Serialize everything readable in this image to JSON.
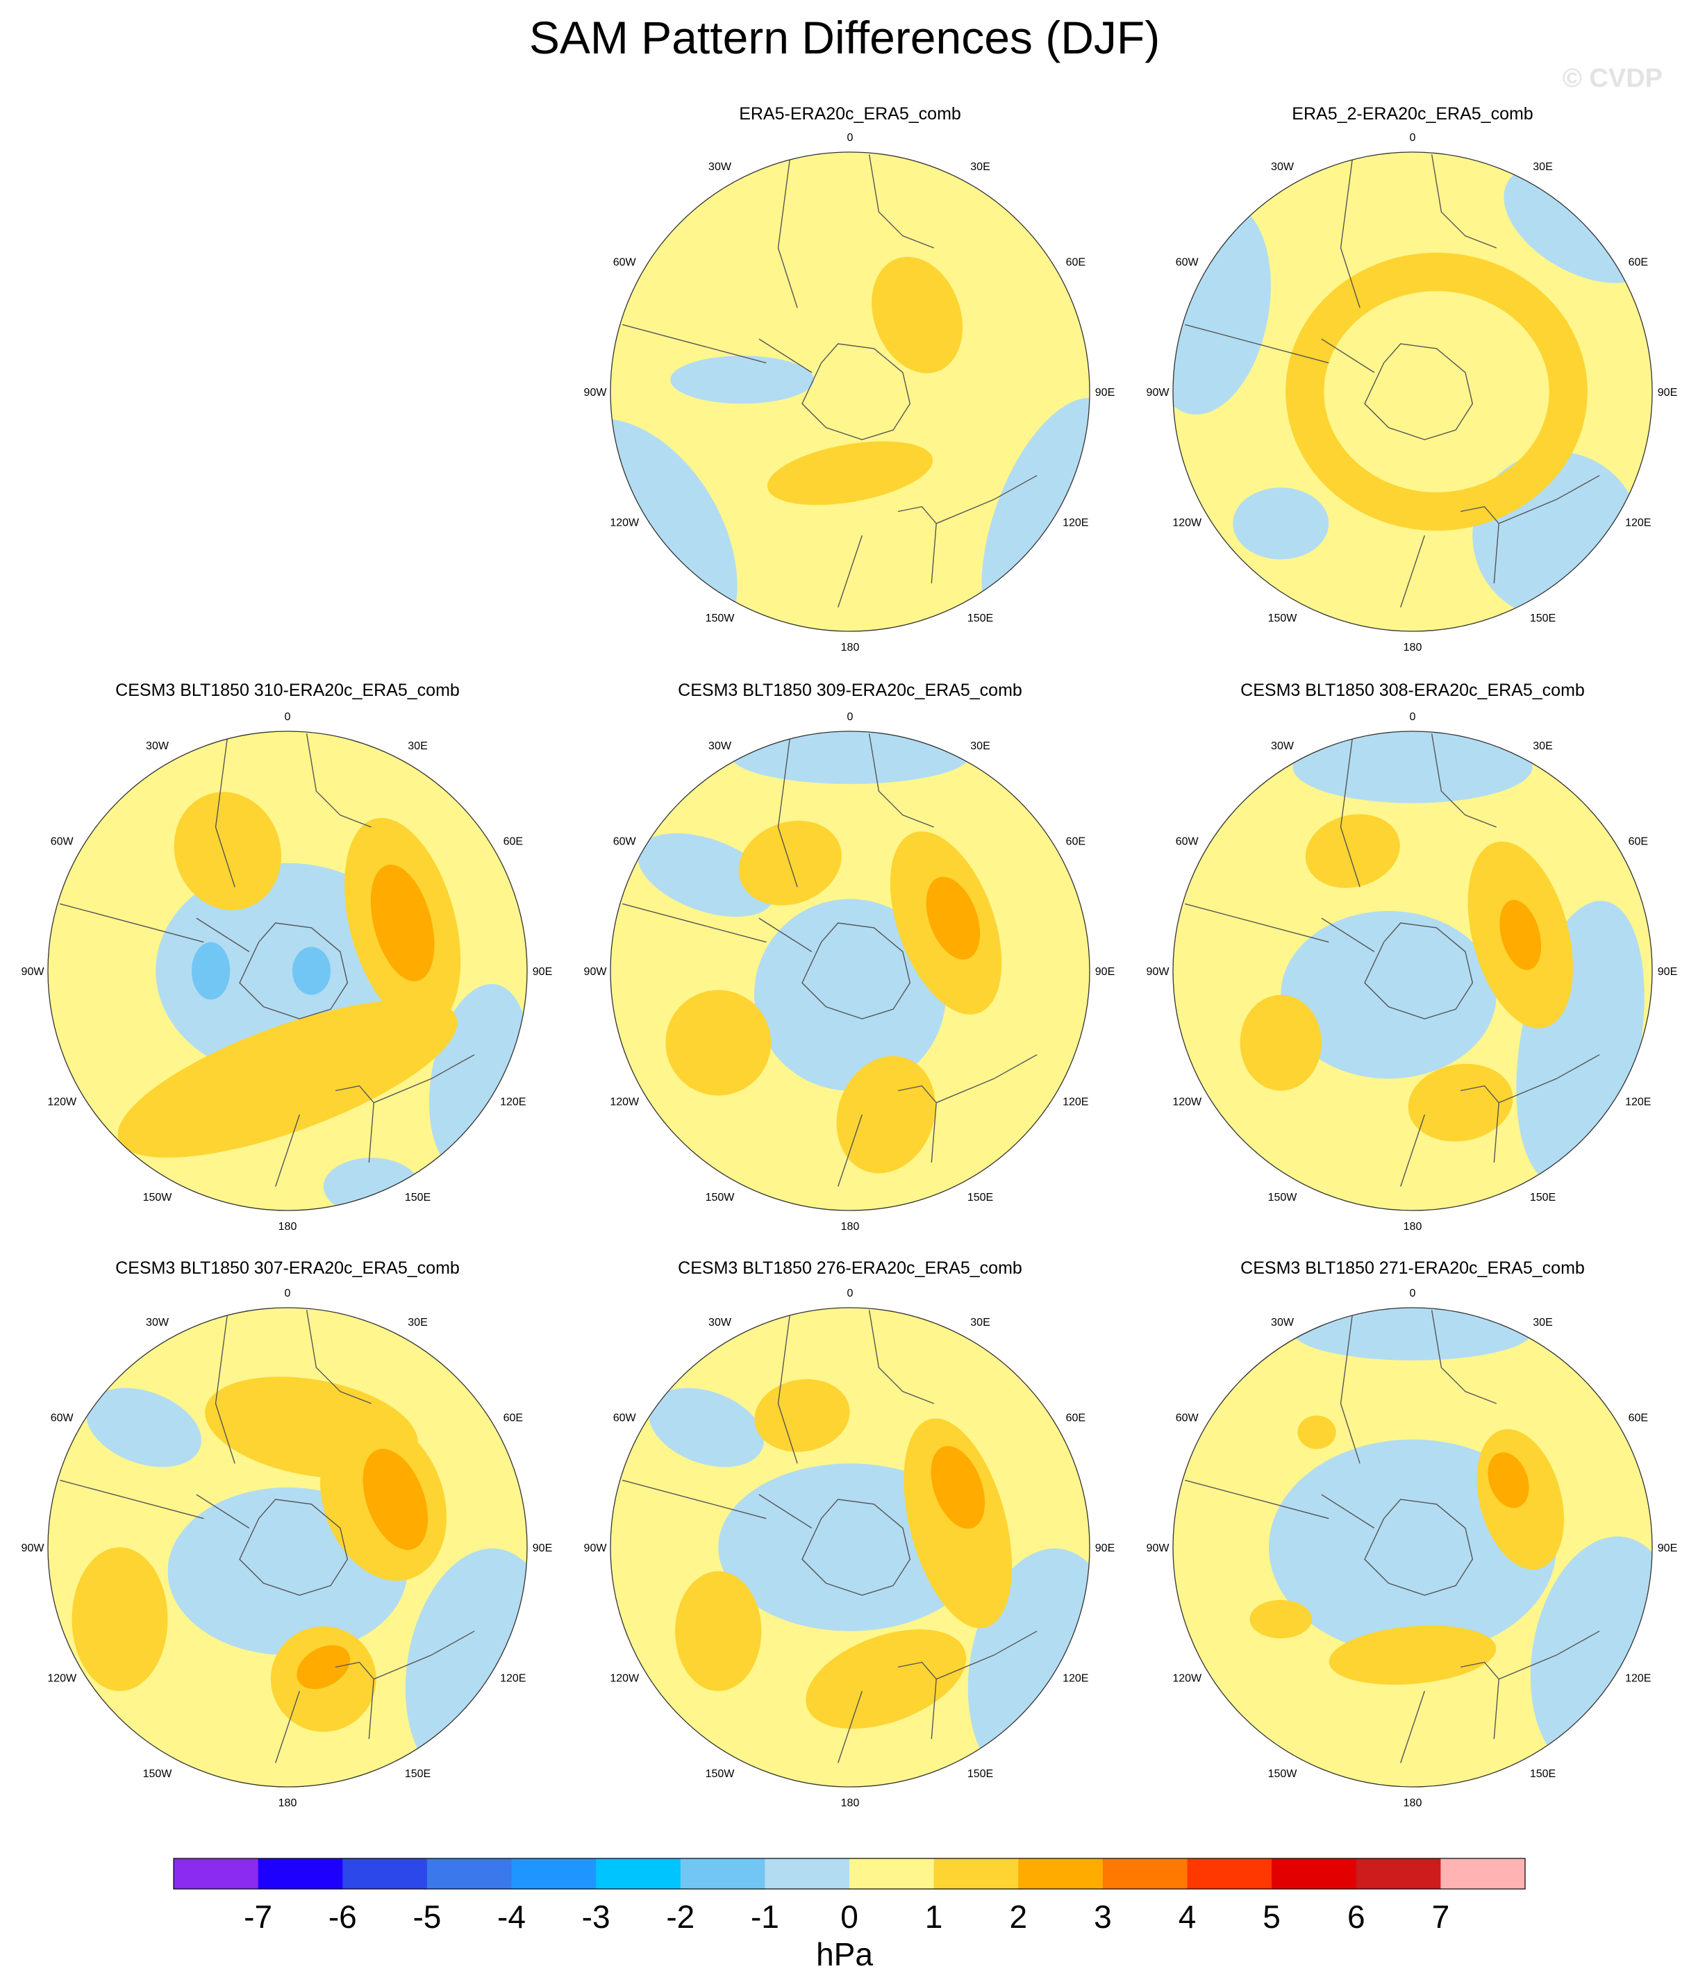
{
  "title": "SAM Pattern Differences (DJF)",
  "watermark": "© CVDP",
  "colors": {
    "levels": [
      "#8a2bef",
      "#1e00fd",
      "#2c47ea",
      "#3a78eb",
      "#1f96ff",
      "#00c4fe",
      "#72c6f4",
      "#b2dcf2",
      "#fff68e",
      "#fdd431",
      "#ffab00",
      "#ff7800",
      "#ff3700",
      "#e30000",
      "#cc1c1c",
      "#ffb3b3"
    ],
    "coast": "#555555",
    "frame": "#333333"
  },
  "lon_labels": [
    "0",
    "30E",
    "60E",
    "90E",
    "120E",
    "150E",
    "180",
    "150W",
    "120W",
    "90W",
    "60W",
    "30W"
  ],
  "panels": [
    {
      "title": "ERA5-ERA20c_ERA5_comb"
    },
    {
      "title": "ERA5_2-ERA20c_ERA5_comb"
    },
    {
      "title": "CESM3 BLT1850 310-ERA20c_ERA5_comb"
    },
    {
      "title": "CESM3 BLT1850 309-ERA20c_ERA5_comb"
    },
    {
      "title": "CESM3 BLT1850 308-ERA20c_ERA5_comb"
    },
    {
      "title": "CESM3 BLT1850 307-ERA20c_ERA5_comb"
    },
    {
      "title": "CESM3 BLT1850 276-ERA20c_ERA5_comb"
    },
    {
      "title": "CESM3 BLT1850 271-ERA20c_ERA5_comb"
    }
  ],
  "chart_data": {
    "type": "polar-stereographic contour map",
    "variable": "SAM pattern difference",
    "season": "DJF",
    "units": "hPa",
    "colorbar_levels": [
      -7,
      -6,
      -5,
      -4,
      -3,
      -2,
      -1,
      0,
      1,
      2,
      3,
      4,
      5,
      6,
      7
    ],
    "colorbar_labels": [
      "-7",
      "-6",
      "-5",
      "-4",
      "-3",
      "-2",
      "-1",
      "0",
      "1",
      "2",
      "3",
      "4",
      "5",
      "6",
      "7"
    ],
    "colorbar_unit": "hPa"
  }
}
